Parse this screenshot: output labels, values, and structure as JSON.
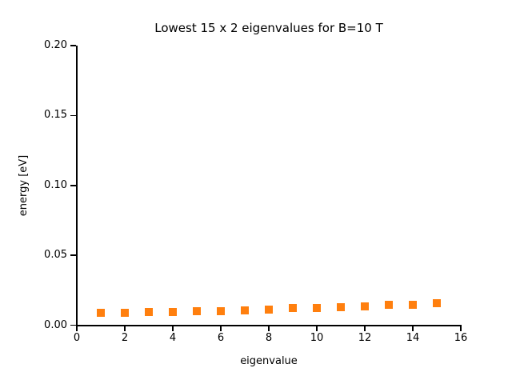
{
  "figure": {
    "title": "Lowest 15 x 2 eigenvalues for B=10 T",
    "xlabel": "eigenvalue",
    "ylabel": "energy [eV]"
  },
  "chart_data": {
    "type": "scatter",
    "title": "Lowest 15 x 2 eigenvalues for B=10 T",
    "xlabel": "eigenvalue",
    "ylabel": "energy [eV]",
    "xlim": [
      0,
      16
    ],
    "ylim": [
      0,
      0.2
    ],
    "xticks": [
      0,
      2,
      4,
      6,
      8,
      10,
      12,
      14,
      16
    ],
    "xtick_labels": [
      "0",
      "2",
      "4",
      "6",
      "8",
      "10",
      "12",
      "14",
      "16"
    ],
    "yticks": [
      0.0,
      0.05,
      0.1,
      0.15,
      0.2
    ],
    "ytick_labels": [
      "0.00",
      "0.05",
      "0.10",
      "0.15",
      "0.20"
    ],
    "grid": false,
    "legend": "none",
    "marker": "square",
    "marker_color": "#ff7f0e",
    "spines_visible": [
      "left",
      "bottom"
    ],
    "series": [
      {
        "name": "eigenvalues",
        "x": [
          1,
          2,
          3,
          4,
          5,
          6,
          7,
          8,
          9,
          10,
          11,
          12,
          13,
          14,
          15
        ],
        "y": [
          0.009,
          0.009,
          0.0092,
          0.0095,
          0.01,
          0.0102,
          0.0107,
          0.011,
          0.0122,
          0.0125,
          0.0129,
          0.0132,
          0.0145,
          0.0148,
          0.0155
        ],
        "degeneracy_per_point": 2
      }
    ]
  }
}
